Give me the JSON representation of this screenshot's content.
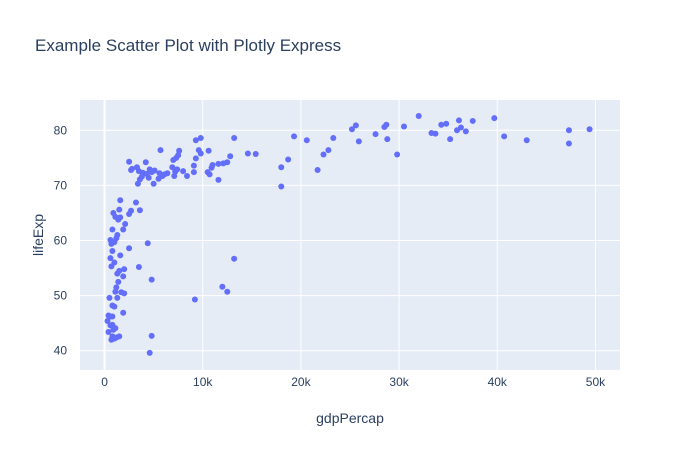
{
  "chart_data": {
    "type": "scatter",
    "title": "Example Scatter Plot with Plotly Express",
    "xlabel": "gdpPercap",
    "ylabel": "lifeExp",
    "xlim": [
      -2500,
      52500
    ],
    "ylim": [
      36.5,
      85.5
    ],
    "xticks": [
      0,
      10000,
      20000,
      30000,
      40000,
      50000
    ],
    "xtick_labels": [
      "0",
      "10k",
      "20k",
      "30k",
      "40k",
      "50k"
    ],
    "yticks": [
      40,
      50,
      60,
      70,
      80
    ],
    "ytick_labels": [
      "40",
      "50",
      "60",
      "70",
      "80"
    ],
    "grid": true,
    "legend": "none",
    "colors": {
      "marker": "#636efa",
      "plot_bg": "#e5ecf6",
      "text": "#2a3f5f"
    },
    "points": [
      [
        32000,
        82.6
      ],
      [
        36100,
        81.8
      ],
      [
        39700,
        82.2
      ],
      [
        47300,
        80.0
      ],
      [
        49400,
        80.2
      ],
      [
        34300,
        81.0
      ],
      [
        36800,
        79.8
      ],
      [
        37500,
        81.7
      ],
      [
        40700,
        78.9
      ],
      [
        43000,
        78.2
      ],
      [
        47300,
        77.6
      ],
      [
        33300,
        79.5
      ],
      [
        33700,
        79.4
      ],
      [
        34800,
        81.2
      ],
      [
        35200,
        78.4
      ],
      [
        35900,
        80.0
      ],
      [
        36300,
        80.5
      ],
      [
        30500,
        80.7
      ],
      [
        28700,
        81.0
      ],
      [
        28500,
        80.6
      ],
      [
        27600,
        79.3
      ],
      [
        28800,
        78.4
      ],
      [
        29800,
        75.6
      ],
      [
        25200,
        80.2
      ],
      [
        25600,
        80.9
      ],
      [
        25900,
        78.0
      ],
      [
        23300,
        78.6
      ],
      [
        22800,
        76.4
      ],
      [
        22300,
        75.6
      ],
      [
        21700,
        72.8
      ],
      [
        20600,
        78.2
      ],
      [
        19300,
        78.9
      ],
      [
        18700,
        74.7
      ],
      [
        18000,
        73.3
      ],
      [
        18000,
        69.8
      ],
      [
        14600,
        75.8
      ],
      [
        15400,
        75.7
      ],
      [
        13200,
        78.6
      ],
      [
        12800,
        75.3
      ],
      [
        12500,
        74.2
      ],
      [
        12100,
        74.0
      ],
      [
        11600,
        73.9
      ],
      [
        11600,
        71.0
      ],
      [
        11000,
        73.7
      ],
      [
        10700,
        72.0
      ],
      [
        10600,
        76.3
      ],
      [
        10500,
        72.4
      ],
      [
        9800,
        78.6
      ],
      [
        9800,
        75.8
      ],
      [
        9300,
        78.2
      ],
      [
        9600,
        76.4
      ],
      [
        9300,
        74.9
      ],
      [
        9100,
        73.6
      ],
      [
        9100,
        72.4
      ],
      [
        8400,
        71.7
      ],
      [
        7600,
        76.3
      ],
      [
        7500,
        75.5
      ],
      [
        7300,
        75.0
      ],
      [
        7400,
        72.9
      ],
      [
        7200,
        72.5
      ],
      [
        7000,
        74.6
      ],
      [
        7100,
        71.7
      ],
      [
        6900,
        73.3
      ],
      [
        6100,
        72.0
      ],
      [
        5700,
        76.4
      ],
      [
        5900,
        71.7
      ],
      [
        5600,
        72.2
      ],
      [
        5500,
        71.2
      ],
      [
        5100,
        72.7
      ],
      [
        4800,
        72.4
      ],
      [
        4600,
        72.9
      ],
      [
        4500,
        71.4
      ],
      [
        4200,
        74.2
      ],
      [
        4300,
        72.1
      ],
      [
        3900,
        72.3
      ],
      [
        3800,
        71.6
      ],
      [
        3600,
        71.1
      ],
      [
        3400,
        70.3
      ],
      [
        3500,
        72.6
      ],
      [
        3300,
        73.3
      ],
      [
        2800,
        73.0
      ],
      [
        2500,
        74.3
      ],
      [
        2700,
        72.8
      ],
      [
        3600,
        65.5
      ],
      [
        3200,
        66.9
      ],
      [
        2700,
        65.4
      ],
      [
        2500,
        64.8
      ],
      [
        2500,
        58.6
      ],
      [
        2100,
        63.0
      ],
      [
        1900,
        62.0
      ],
      [
        1600,
        67.3
      ],
      [
        1600,
        64.2
      ],
      [
        1500,
        65.6
      ],
      [
        1400,
        63.8
      ],
      [
        1300,
        61.0
      ],
      [
        1200,
        60.4
      ],
      [
        1100,
        64.3
      ],
      [
        1000,
        59.7
      ],
      [
        900,
        65.0
      ],
      [
        800,
        62.0
      ],
      [
        700,
        59.4
      ],
      [
        600,
        60.1
      ],
      [
        600,
        56.8
      ],
      [
        700,
        55.3
      ],
      [
        800,
        58.1
      ],
      [
        1000,
        56.0
      ],
      [
        1300,
        54.0
      ],
      [
        1500,
        54.5
      ],
      [
        1600,
        57.3
      ],
      [
        1900,
        53.5
      ],
      [
        2000,
        54.8
      ],
      [
        3500,
        55.2
      ],
      [
        4400,
        59.5
      ],
      [
        1400,
        52.5
      ],
      [
        1200,
        51.5
      ],
      [
        1100,
        50.7
      ],
      [
        1300,
        49.6
      ],
      [
        1700,
        50.6
      ],
      [
        2000,
        50.4
      ],
      [
        500,
        49.6
      ],
      [
        800,
        48.2
      ],
      [
        1000,
        48.0
      ],
      [
        1900,
        46.9
      ],
      [
        400,
        46.4
      ],
      [
        600,
        46.2
      ],
      [
        800,
        46.2
      ],
      [
        300,
        45.4
      ],
      [
        400,
        43.4
      ],
      [
        600,
        44.6
      ],
      [
        800,
        44.7
      ],
      [
        900,
        43.8
      ],
      [
        1100,
        44.1
      ],
      [
        800,
        42.6
      ],
      [
        1000,
        42.2
      ],
      [
        1200,
        42.4
      ],
      [
        1500,
        42.6
      ],
      [
        700,
        42.0
      ],
      [
        4800,
        42.7
      ],
      [
        4600,
        39.6
      ],
      [
        9200,
        49.3
      ],
      [
        12000,
        51.6
      ],
      [
        12500,
        50.7
      ],
      [
        13200,
        56.7
      ],
      [
        4800,
        52.9
      ],
      [
        10900,
        73.2
      ],
      [
        8000,
        72.6
      ],
      [
        6400,
        72.2
      ],
      [
        5000,
        70.3
      ]
    ]
  }
}
